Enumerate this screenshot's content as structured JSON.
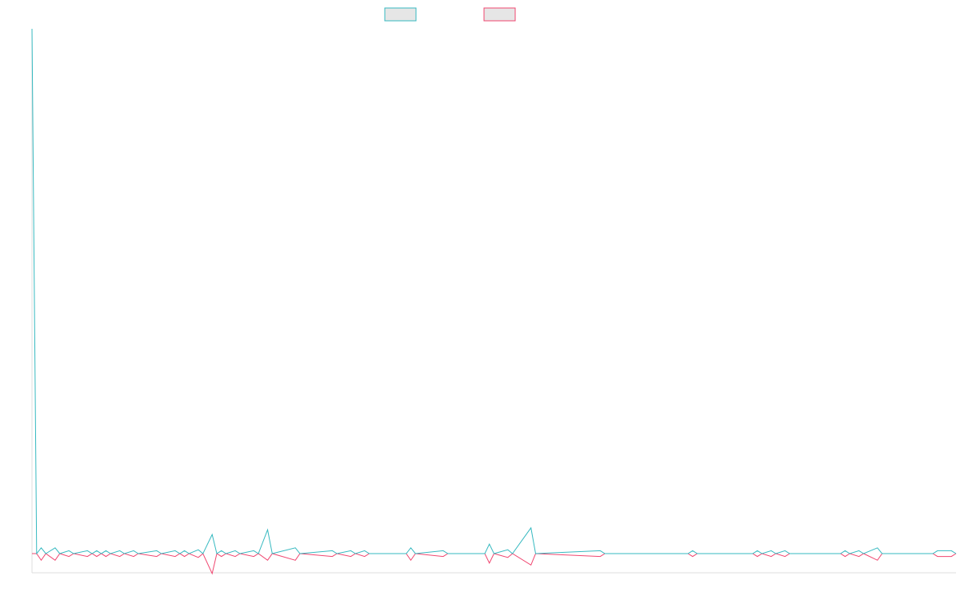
{
  "colors": {
    "series_a": "#36b9c0",
    "series_b": "#f0456f",
    "swatch_fill": "#e6e6e6",
    "axis": "#dddddd",
    "background": "#ffffff"
  },
  "chart_data": {
    "type": "line",
    "legend": {
      "placement": "top-center",
      "entries": [
        {
          "series": 0,
          "label": ""
        },
        {
          "series": 1,
          "label": ""
        }
      ]
    },
    "grid": false,
    "x_count": 201,
    "ylim": [
      -1,
      27.5
    ],
    "series": [
      {
        "points": [
          [
            0,
            27.5
          ],
          [
            1,
            0
          ],
          [
            2,
            0.3
          ],
          [
            3,
            0
          ],
          [
            5,
            0.3
          ],
          [
            6,
            0
          ],
          [
            8,
            0.15
          ],
          [
            9,
            0
          ],
          [
            12,
            0.15
          ],
          [
            13,
            0
          ],
          [
            14,
            0.15
          ],
          [
            15,
            0
          ],
          [
            16,
            0.15
          ],
          [
            17,
            0
          ],
          [
            19,
            0.15
          ],
          [
            20,
            0
          ],
          [
            22,
            0.15
          ],
          [
            23,
            0
          ],
          [
            27,
            0.15
          ],
          [
            28,
            0
          ],
          [
            31,
            0.15
          ],
          [
            32,
            0
          ],
          [
            33,
            0.15
          ],
          [
            34,
            0
          ],
          [
            36,
            0.2
          ],
          [
            37,
            0
          ],
          [
            39,
            1
          ],
          [
            40,
            0
          ],
          [
            41,
            0.15
          ],
          [
            42,
            0
          ],
          [
            44,
            0.15
          ],
          [
            45,
            0
          ],
          [
            48,
            0.15
          ],
          [
            49,
            0
          ],
          [
            51,
            1.25
          ],
          [
            52,
            0
          ],
          [
            57,
            0.3
          ],
          [
            58,
            0
          ],
          [
            65,
            0.15
          ],
          [
            66,
            0
          ],
          [
            69,
            0.15
          ],
          [
            70,
            0
          ],
          [
            72,
            0.15
          ],
          [
            73,
            0
          ],
          [
            81,
            0
          ],
          [
            82,
            0.3
          ],
          [
            83,
            0
          ],
          [
            89,
            0.15
          ],
          [
            90,
            0
          ],
          [
            98,
            0
          ],
          [
            99,
            0.5
          ],
          [
            100,
            0
          ],
          [
            103,
            0.2
          ],
          [
            104,
            0
          ],
          [
            108,
            1.35
          ],
          [
            109,
            0
          ],
          [
            123,
            0.15
          ],
          [
            124,
            0
          ],
          [
            142,
            0
          ],
          [
            143,
            0.15
          ],
          [
            144,
            0
          ],
          [
            156,
            0
          ],
          [
            157,
            0.15
          ],
          [
            158,
            0
          ],
          [
            160,
            0.15
          ],
          [
            161,
            0
          ],
          [
            163,
            0.15
          ],
          [
            164,
            0
          ],
          [
            175,
            0
          ],
          [
            176,
            0.15
          ],
          [
            177,
            0
          ],
          [
            179,
            0.15
          ],
          [
            180,
            0
          ],
          [
            183,
            0.3
          ],
          [
            184,
            0
          ],
          [
            195,
            0
          ],
          [
            196,
            0.15
          ],
          [
            199,
            0.15
          ],
          [
            200,
            0
          ]
        ]
      },
      {
        "points": [
          [
            0,
            0
          ],
          [
            1,
            0
          ],
          [
            2,
            -0.35
          ],
          [
            3,
            0
          ],
          [
            5,
            -0.35
          ],
          [
            6,
            0
          ],
          [
            8,
            -0.15
          ],
          [
            9,
            0
          ],
          [
            12,
            -0.15
          ],
          [
            13,
            0
          ],
          [
            14,
            -0.15
          ],
          [
            15,
            0
          ],
          [
            16,
            -0.15
          ],
          [
            17,
            0
          ],
          [
            19,
            -0.15
          ],
          [
            20,
            0
          ],
          [
            22,
            -0.15
          ],
          [
            23,
            0
          ],
          [
            27,
            -0.15
          ],
          [
            28,
            0
          ],
          [
            31,
            -0.15
          ],
          [
            32,
            0
          ],
          [
            33,
            -0.15
          ],
          [
            34,
            0
          ],
          [
            36,
            -0.2
          ],
          [
            37,
            0
          ],
          [
            39,
            -1.05
          ],
          [
            40,
            0
          ],
          [
            41,
            -0.15
          ],
          [
            42,
            0
          ],
          [
            44,
            -0.15
          ],
          [
            45,
            0
          ],
          [
            48,
            -0.15
          ],
          [
            49,
            0
          ],
          [
            51,
            -0.35
          ],
          [
            52,
            0
          ],
          [
            57,
            -0.35
          ],
          [
            58,
            0
          ],
          [
            65,
            -0.15
          ],
          [
            66,
            0
          ],
          [
            69,
            -0.15
          ],
          [
            70,
            0
          ],
          [
            72,
            -0.15
          ],
          [
            73,
            0
          ],
          [
            81,
            0
          ],
          [
            82,
            -0.35
          ],
          [
            83,
            0
          ],
          [
            89,
            -0.15
          ],
          [
            90,
            0
          ],
          [
            98,
            0
          ],
          [
            99,
            -0.5
          ],
          [
            100,
            0
          ],
          [
            103,
            -0.2
          ],
          [
            104,
            0
          ],
          [
            108,
            -0.6
          ],
          [
            109,
            0
          ],
          [
            123,
            -0.15
          ],
          [
            124,
            0
          ],
          [
            142,
            0
          ],
          [
            143,
            -0.15
          ],
          [
            144,
            0
          ],
          [
            156,
            0
          ],
          [
            157,
            -0.15
          ],
          [
            158,
            0
          ],
          [
            160,
            -0.15
          ],
          [
            161,
            0
          ],
          [
            163,
            -0.15
          ],
          [
            164,
            0
          ],
          [
            175,
            0
          ],
          [
            176,
            -0.15
          ],
          [
            177,
            0
          ],
          [
            179,
            -0.15
          ],
          [
            180,
            0
          ],
          [
            183,
            -0.35
          ],
          [
            184,
            0
          ],
          [
            195,
            0
          ],
          [
            196,
            -0.15
          ],
          [
            199,
            -0.15
          ],
          [
            200,
            0
          ]
        ]
      }
    ]
  }
}
